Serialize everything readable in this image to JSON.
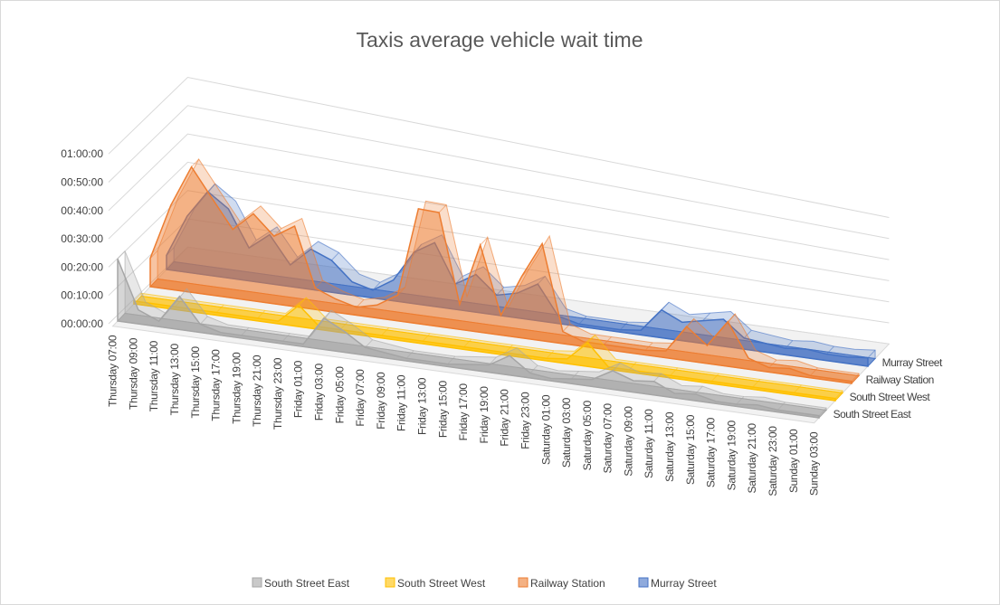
{
  "chart_data": {
    "type": "area3d",
    "title": "Taxis average vehicle wait time",
    "categories": [
      "Thursday 07:00",
      "Thursday 09:00",
      "Thursday 11:00",
      "Thursday 13:00",
      "Thursday 15:00",
      "Thursday 17:00",
      "Thursday 19:00",
      "Thursday 21:00",
      "Thursday 23:00",
      "Friday 01:00",
      "Friday 03:00",
      "Friday 05:00",
      "Friday 07:00",
      "Friday 09:00",
      "Friday 11:00",
      "Friday 13:00",
      "Friday 15:00",
      "Friday 17:00",
      "Friday 19:00",
      "Friday 21:00",
      "Friday 23:00",
      "Saturday 01:00",
      "Saturday 03:00",
      "Saturday 05:00",
      "Saturday 07:00",
      "Saturday 09:00",
      "Saturday 11:00",
      "Saturday 13:00",
      "Saturday 15:00",
      "Saturday 17:00",
      "Saturday 19:00",
      "Saturday 21:00",
      "Saturday 23:00",
      "Sunday 01:00",
      "Sunday 03:00"
    ],
    "series": [
      {
        "name": "South Street East",
        "color": "#a5a5a5",
        "values": [
          22,
          5,
          2,
          12,
          3,
          1,
          1,
          1,
          1,
          1,
          12,
          8,
          3,
          2,
          1,
          1,
          1,
          2,
          3,
          8,
          2,
          1,
          2,
          3,
          8,
          5,
          6,
          2,
          3,
          1,
          1,
          2,
          1,
          1,
          1
        ]
      },
      {
        "name": "South Street West",
        "color": "#ffc000",
        "values": [
          1,
          1,
          1,
          1,
          1,
          1,
          1,
          1,
          8,
          1,
          1,
          1,
          1,
          1,
          1,
          1,
          1,
          1,
          1,
          1,
          1,
          2,
          10,
          1,
          1,
          1,
          1,
          1,
          1,
          1,
          1,
          1,
          1,
          1,
          1
        ]
      },
      {
        "name": "Railway Station",
        "color": "#ed7d31",
        "values": [
          10,
          30,
          45,
          35,
          25,
          32,
          25,
          30,
          8,
          5,
          3,
          5,
          10,
          45,
          45,
          10,
          35,
          8,
          25,
          40,
          5,
          2,
          2,
          2,
          2,
          3,
          15,
          8,
          20,
          5,
          2,
          3,
          1,
          1,
          1
        ]
      },
      {
        "name": "Murray Street",
        "color": "#4472c4",
        "values": [
          5,
          20,
          30,
          25,
          12,
          18,
          8,
          15,
          12,
          5,
          3,
          8,
          20,
          25,
          10,
          15,
          8,
          10,
          15,
          3,
          1,
          1,
          1,
          2,
          12,
          8,
          10,
          12,
          5,
          4,
          3,
          4,
          3,
          3,
          4
        ]
      }
    ],
    "ylim": [
      0,
      60
    ],
    "yticks": [
      {
        "value": 0,
        "label": "00:00:00"
      },
      {
        "value": 10,
        "label": "00:10:00"
      },
      {
        "value": 20,
        "label": "00:20:00"
      },
      {
        "value": 30,
        "label": "00:30:00"
      },
      {
        "value": 40,
        "label": "00:40:00"
      },
      {
        "value": 50,
        "label": "00:50:00"
      },
      {
        "value": 60,
        "label": "01:00:00"
      }
    ],
    "grid": true,
    "legend": "bottom"
  }
}
